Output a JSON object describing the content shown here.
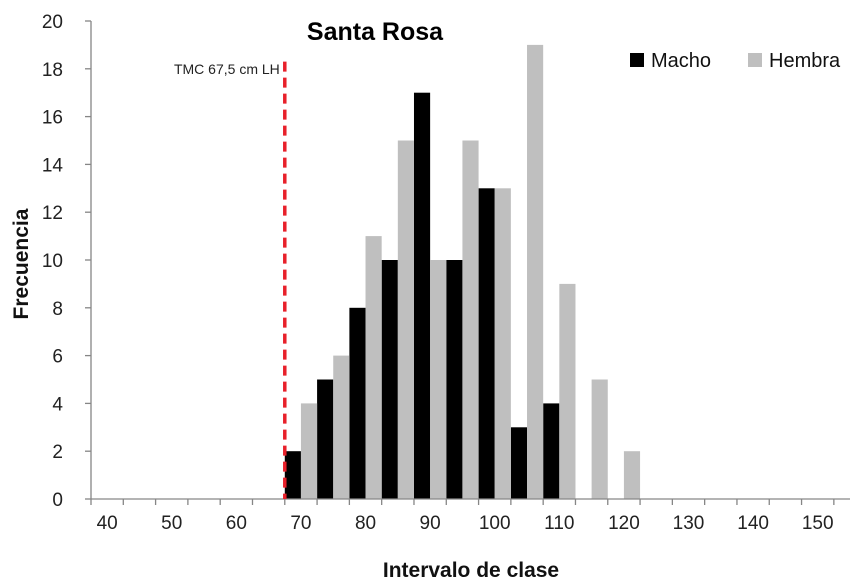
{
  "chart_data": {
    "type": "bar",
    "title": "Santa Rosa",
    "xlabel": "Intervalo de clase",
    "ylabel": "Frecuencia",
    "xlim": [
      37.5,
      155
    ],
    "ylim": [
      0,
      20
    ],
    "x_ticks": [
      40,
      50,
      60,
      70,
      80,
      90,
      100,
      110,
      120,
      130,
      140,
      150
    ],
    "y_ticks": [
      0,
      2,
      4,
      6,
      8,
      10,
      12,
      14,
      16,
      18,
      20
    ],
    "grid": false,
    "legend_position": "top-right",
    "categories": [
      70,
      75,
      80,
      85,
      90,
      95,
      100,
      105,
      110,
      115,
      120
    ],
    "series": [
      {
        "name": "Macho",
        "color": "#000000",
        "values": [
          2,
          5,
          8,
          10,
          17,
          10,
          13,
          3,
          4,
          0,
          0
        ]
      },
      {
        "name": "Hembra",
        "color": "#bfbfbf",
        "values": [
          4,
          6,
          11,
          15,
          10,
          15,
          13,
          19,
          9,
          5,
          2
        ]
      }
    ],
    "reference_line": {
      "x": 67.5,
      "label": "TMC 67,5 cm LH",
      "color": "#e8202a",
      "style": "dashed"
    }
  }
}
